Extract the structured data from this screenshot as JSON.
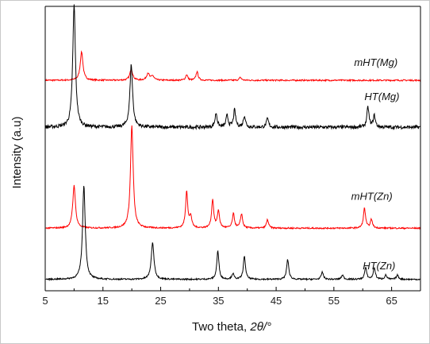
{
  "chart_data": {
    "type": "line",
    "xlabel_prefix": "Two theta, ",
    "xlabel_symbol": "2θ/°",
    "ylabel": "Intensity (a.u)",
    "xlim": [
      5,
      70
    ],
    "xticks": [
      5,
      15,
      25,
      35,
      45,
      55,
      65
    ],
    "xtick_labels": [
      "5",
      "15",
      "25",
      "35",
      "45",
      "55",
      "65"
    ],
    "grid": false,
    "series": [
      {
        "name": "mHT(Mg)",
        "color": "#ff0000",
        "baseline": 0.74,
        "peaks": [
          [
            11.3,
            0.1
          ],
          [
            19.9,
            0.04
          ],
          [
            22.8,
            0.025
          ],
          [
            23.6,
            0.015
          ],
          [
            29.5,
            0.02
          ],
          [
            31.3,
            0.03
          ],
          [
            38.8,
            0.01
          ]
        ]
      },
      {
        "name": "HT(Mg)",
        "color": "#000000",
        "baseline": 0.575,
        "peaks": [
          [
            10.0,
            0.43
          ],
          [
            19.9,
            0.22
          ],
          [
            34.6,
            0.05
          ],
          [
            36.5,
            0.04
          ],
          [
            37.8,
            0.06
          ],
          [
            39.5,
            0.04
          ],
          [
            43.5,
            0.03
          ],
          [
            60.9,
            0.07
          ],
          [
            62.0,
            0.04
          ]
        ]
      },
      {
        "name": "mHT(Zn)",
        "color": "#ff0000",
        "baseline": 0.22,
        "peaks": [
          [
            10.0,
            0.15
          ],
          [
            20.0,
            0.36
          ],
          [
            29.5,
            0.13
          ],
          [
            30.2,
            0.04
          ],
          [
            34.0,
            0.1
          ],
          [
            35.0,
            0.06
          ],
          [
            37.6,
            0.05
          ],
          [
            39.0,
            0.05
          ],
          [
            43.5,
            0.03
          ],
          [
            60.3,
            0.07
          ],
          [
            61.5,
            0.03
          ]
        ]
      },
      {
        "name": "HT(Zn)",
        "color": "#000000",
        "baseline": 0.04,
        "peaks": [
          [
            11.7,
            0.33
          ],
          [
            23.6,
            0.13
          ],
          [
            34.9,
            0.1
          ],
          [
            37.5,
            0.02
          ],
          [
            39.5,
            0.08
          ],
          [
            47.0,
            0.07
          ],
          [
            53.0,
            0.025
          ],
          [
            56.5,
            0.015
          ],
          [
            60.5,
            0.04
          ],
          [
            62.0,
            0.04
          ],
          [
            64.0,
            0.015
          ],
          [
            66.0,
            0.015
          ]
        ]
      }
    ],
    "annotations": [
      {
        "text": "mHT(Mg)",
        "x": 58.5,
        "y": 0.79
      },
      {
        "text": "HT(Mg)",
        "x": 60.3,
        "y": 0.67
      },
      {
        "text": "mHT(Zn)",
        "x": 58.0,
        "y": 0.32
      },
      {
        "text": "HT(Zn)",
        "x": 60.0,
        "y": 0.075
      }
    ]
  }
}
